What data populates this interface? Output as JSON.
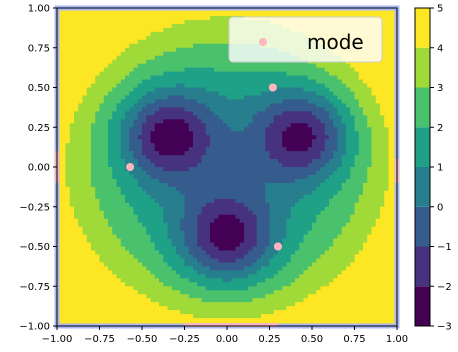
{
  "chart_data": {
    "type": "contour",
    "x": {
      "ticks": [
        -1.0,
        -0.75,
        -0.5,
        -0.25,
        0.0,
        0.25,
        0.5,
        0.75,
        1.0
      ],
      "tick_labels": [
        "−1.00",
        "−0.75",
        "−0.50",
        "−0.25",
        "0.00",
        "0.25",
        "0.50",
        "0.75",
        "1.00"
      ],
      "lim": [
        -1,
        1
      ]
    },
    "y": {
      "ticks": [
        -1.0,
        -0.75,
        -0.5,
        -0.25,
        0.0,
        0.25,
        0.5,
        0.75,
        1.0
      ],
      "tick_labels": [
        "−1.00",
        "−0.75",
        "−0.50",
        "−0.25",
        "0.00",
        "0.25",
        "0.50",
        "0.75",
        "1.00"
      ],
      "lim": [
        -1,
        1
      ]
    },
    "levels": [
      -3,
      -2,
      -1,
      0,
      1,
      2,
      3,
      4,
      5
    ],
    "colorbar": {
      "ticks": [
        -3,
        -2,
        -1,
        0,
        1,
        2,
        3,
        4,
        5
      ],
      "tick_labels": [
        "−3",
        "−2",
        "−1",
        "0",
        "1",
        "2",
        "3",
        "4",
        "5"
      ],
      "colors": [
        "#440154",
        "#46327e",
        "#365c8d",
        "#277f8e",
        "#1fa187",
        "#4ac16d",
        "#a0da39",
        "#fde725"
      ]
    },
    "wells": [
      {
        "x": -0.35,
        "y": 0.2
      },
      {
        "x": 0.45,
        "y": 0.2
      },
      {
        "x": 0.0,
        "y": -0.45
      }
    ],
    "series": [
      {
        "name": "mode",
        "type": "scatter",
        "color": "#ffb6c1",
        "points": [
          {
            "x": 0.27,
            "y": 0.5
          },
          {
            "x": -0.57,
            "y": 0.0
          },
          {
            "x": 0.3,
            "y": -0.5
          }
        ]
      }
    ],
    "frame_color": "#a9b7f5",
    "frame_accent_color": "#f4b6c2",
    "legend": {
      "label": "mode",
      "location": "upper right"
    }
  }
}
